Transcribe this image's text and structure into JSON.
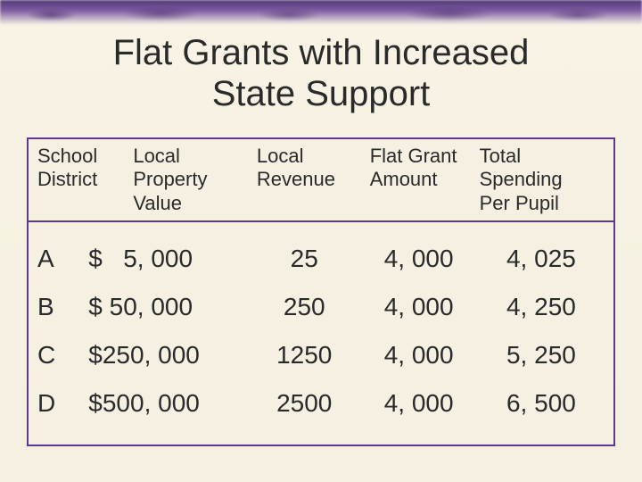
{
  "title_line1": "Flat Grants with Increased",
  "title_line2": "State Support",
  "colors": {
    "border": "#5c3b8c",
    "background": "#f5f0e1",
    "text": "#2a2a2a",
    "accent_gradient_top": "#53397a",
    "accent_gradient_mid": "#7a5a9e"
  },
  "typography": {
    "title_font": "Arial",
    "title_size_pt": 30,
    "header_font": "Arial",
    "header_size_pt": 17,
    "body_font": "Arial",
    "body_size_pt": 21
  },
  "table": {
    "headers": {
      "h0a": "School",
      "h0b": "District",
      "h1a": "Local",
      "h1b": "Property",
      "h1c": "Value",
      "h2a": "Local",
      "h2b": "Revenue",
      "h3a": "Flat Grant",
      "h3b": "Amount",
      "h4a": "Total Spending",
      "h4b": "Per Pupil"
    },
    "rows": [
      {
        "district": "A",
        "property": "$   5, 000",
        "revenue": "25",
        "grant": "4, 000",
        "total": "4, 025"
      },
      {
        "district": "B",
        "property": "$ 50, 000",
        "revenue": "250",
        "grant": "4, 000",
        "total": "4, 250"
      },
      {
        "district": "C",
        "property": "$250, 000",
        "revenue": "1250",
        "grant": "4, 000",
        "total": "5, 250"
      },
      {
        "district": "D",
        "property": "$500, 000",
        "revenue": "2500",
        "grant": "4, 000",
        "total": "6, 500"
      }
    ]
  }
}
